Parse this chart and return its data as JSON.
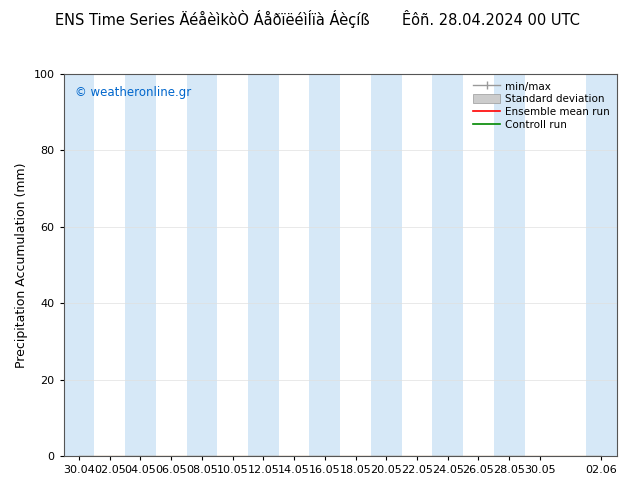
{
  "title": "ENS Time Series ÄéåèìkòÒ ÁåðïëéìÍïà Áèçíß       Êôñ. 28.04.2024 00 UTC",
  "watermark": "© weatheronline.gr",
  "ylabel": "Precipitation Accumulation (mm)",
  "ylim": [
    0,
    100
  ],
  "yticks": [
    0,
    20,
    40,
    60,
    80,
    100
  ],
  "xtick_labels": [
    "30.04",
    "02.05",
    "04.05",
    "06.05",
    "08.05",
    "10.05",
    "12.05",
    "14.05",
    "16.05",
    "18.05",
    "20.05",
    "22.05",
    "24.05",
    "26.05",
    "28.05",
    "30.05",
    "02.06"
  ],
  "shaded_band_color": "#d6e8f7",
  "background_color": "#ffffff",
  "watermark_color": "#0066cc",
  "title_fontsize": 10.5,
  "tick_fontsize": 8,
  "ylabel_fontsize": 9,
  "shaded_x_indices": [
    0,
    2,
    4,
    6,
    8,
    10,
    12,
    14,
    16
  ],
  "legend_minmax_color": "#999999",
  "legend_std_color": "#cccccc",
  "legend_ens_color": "#ff0000",
  "legend_ctrl_color": "#008800"
}
